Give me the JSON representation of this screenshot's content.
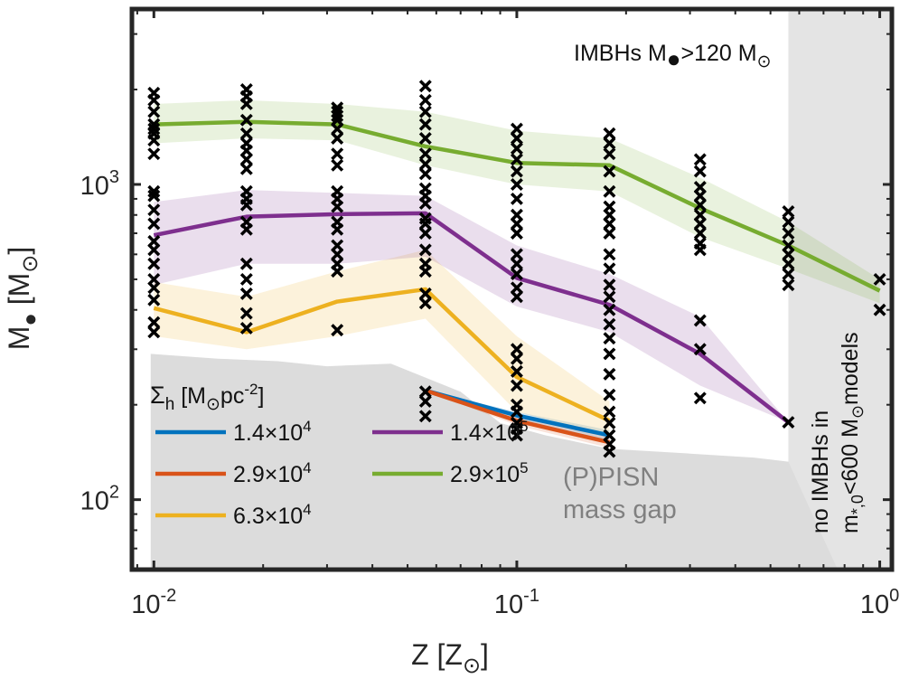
{
  "chart_data": {
    "type": "line",
    "x_scale": "log",
    "y_scale": "log",
    "xlim": [
      0.0087,
      1.08
    ],
    "ylim": [
      60,
      3600
    ],
    "xlabel": "Z [Z",
    "xlabel_sub": "⊙",
    "xlabel_close": "]",
    "ylabel": "M",
    "ylabel_sub": "●",
    "ylabel_unit": " [M",
    "ylabel_unit_sub": "⊙",
    "ylabel_close": "]",
    "x_ticks": [
      {
        "value": 0.01,
        "base": "10",
        "exp": "-2"
      },
      {
        "value": 0.1,
        "base": "10",
        "exp": "-1"
      },
      {
        "value": 1,
        "base": "10",
        "exp": "0"
      }
    ],
    "y_ticks": [
      {
        "value": 100,
        "base": "10",
        "exp": "2"
      },
      {
        "value": 1000,
        "base": "10",
        "exp": "3"
      }
    ],
    "legend": {
      "title": "Σ",
      "title_sub": "h",
      "title_unit": " [M",
      "title_unit_sub": "⊙",
      "title_unit_rest": "pc",
      "title_unit_sup": "-2",
      "title_close": "]"
    },
    "series": [
      {
        "name": "1.4×10",
        "exp": "4",
        "color": "#0072BD",
        "x": [
          0.056,
          0.1,
          0.18
        ],
        "y": [
          222,
          185,
          160
        ],
        "band_lo": [
          222,
          180,
          153
        ],
        "band_hi": [
          222,
          190,
          166
        ]
      },
      {
        "name": "2.9×10",
        "exp": "4",
        "color": "#D95319",
        "x": [
          0.056,
          0.1,
          0.18
        ],
        "y": [
          222,
          178,
          152
        ],
        "band_lo": [
          222,
          172,
          146
        ],
        "band_hi": [
          222,
          184,
          158
        ]
      },
      {
        "name": "6.3×10",
        "exp": "4",
        "color": "#EDB120",
        "x": [
          0.01,
          0.018,
          0.032,
          0.056,
          0.1,
          0.18
        ],
        "y": [
          405,
          340,
          425,
          465,
          245,
          178
        ],
        "band_lo": [
          330,
          300,
          330,
          375,
          190,
          160
        ],
        "band_hi": [
          490,
          440,
          530,
          620,
          330,
          205
        ]
      },
      {
        "name": "1.4×10",
        "exp": "5",
        "color": "#7E2F8E",
        "x": [
          0.01,
          0.018,
          0.032,
          0.056,
          0.1,
          0.18,
          0.32,
          0.56
        ],
        "y": [
          690,
          790,
          805,
          810,
          505,
          415,
          290,
          176
        ],
        "band_lo": [
          480,
          560,
          560,
          590,
          410,
          340,
          230,
          176
        ],
        "band_hi": [
          880,
          960,
          940,
          920,
          640,
          520,
          380,
          176
        ]
      },
      {
        "name": "2.9×10",
        "exp": "5",
        "color": "#77AC30",
        "x": [
          0.01,
          0.018,
          0.032,
          0.056,
          0.1,
          0.18,
          0.32,
          0.56,
          1.0
        ],
        "y": [
          1550,
          1580,
          1550,
          1320,
          1170,
          1150,
          840,
          640,
          460
        ],
        "band_lo": [
          1350,
          1400,
          1380,
          1150,
          1000,
          950,
          680,
          540,
          420
        ],
        "band_hi": [
          1800,
          1850,
          1800,
          1700,
          1480,
          1400,
          1050,
          760,
          500
        ]
      }
    ],
    "scatter": {
      "marker": "x",
      "color": "#000000",
      "points": [
        [
          0.01,
          1950
        ],
        [
          0.01,
          1850
        ],
        [
          0.01,
          1700
        ],
        [
          0.01,
          1550
        ],
        [
          0.01,
          1500
        ],
        [
          0.01,
          1450
        ],
        [
          0.01,
          1380
        ],
        [
          0.01,
          1250
        ],
        [
          0.01,
          950
        ],
        [
          0.01,
          920
        ],
        [
          0.01,
          830
        ],
        [
          0.01,
          750
        ],
        [
          0.01,
          660
        ],
        [
          0.01,
          620
        ],
        [
          0.01,
          560
        ],
        [
          0.01,
          500
        ],
        [
          0.01,
          470
        ],
        [
          0.01,
          430
        ],
        [
          0.01,
          365
        ],
        [
          0.01,
          340
        ],
        [
          0.018,
          2000
        ],
        [
          0.018,
          1900
        ],
        [
          0.018,
          1800
        ],
        [
          0.018,
          1600
        ],
        [
          0.018,
          1450
        ],
        [
          0.018,
          1350
        ],
        [
          0.018,
          1280
        ],
        [
          0.018,
          1200
        ],
        [
          0.018,
          1120
        ],
        [
          0.018,
          950
        ],
        [
          0.018,
          900
        ],
        [
          0.018,
          860
        ],
        [
          0.018,
          760
        ],
        [
          0.018,
          720
        ],
        [
          0.018,
          560
        ],
        [
          0.018,
          500
        ],
        [
          0.018,
          450
        ],
        [
          0.018,
          390
        ],
        [
          0.018,
          350
        ],
        [
          0.032,
          1750
        ],
        [
          0.032,
          1700
        ],
        [
          0.032,
          1650
        ],
        [
          0.032,
          1600
        ],
        [
          0.032,
          1500
        ],
        [
          0.032,
          1400
        ],
        [
          0.032,
          1250
        ],
        [
          0.032,
          1150
        ],
        [
          0.032,
          950
        ],
        [
          0.032,
          900
        ],
        [
          0.032,
          850
        ],
        [
          0.032,
          760
        ],
        [
          0.032,
          720
        ],
        [
          0.032,
          640
        ],
        [
          0.032,
          600
        ],
        [
          0.032,
          560
        ],
        [
          0.032,
          530
        ],
        [
          0.032,
          345
        ],
        [
          0.056,
          2050
        ],
        [
          0.056,
          1850
        ],
        [
          0.056,
          1700
        ],
        [
          0.056,
          1550
        ],
        [
          0.056,
          1400
        ],
        [
          0.056,
          1250
        ],
        [
          0.056,
          1160
        ],
        [
          0.056,
          1080
        ],
        [
          0.056,
          970
        ],
        [
          0.056,
          920
        ],
        [
          0.056,
          870
        ],
        [
          0.056,
          780
        ],
        [
          0.056,
          750
        ],
        [
          0.056,
          700
        ],
        [
          0.056,
          620
        ],
        [
          0.056,
          560
        ],
        [
          0.056,
          530
        ],
        [
          0.056,
          450
        ],
        [
          0.056,
          420
        ],
        [
          0.056,
          220
        ],
        [
          0.056,
          205
        ],
        [
          0.056,
          184
        ],
        [
          0.1,
          1500
        ],
        [
          0.1,
          1400
        ],
        [
          0.1,
          1300
        ],
        [
          0.1,
          1200
        ],
        [
          0.1,
          1100
        ],
        [
          0.1,
          1000
        ],
        [
          0.1,
          900
        ],
        [
          0.1,
          800
        ],
        [
          0.1,
          750
        ],
        [
          0.1,
          700
        ],
        [
          0.1,
          600
        ],
        [
          0.1,
          560
        ],
        [
          0.1,
          520
        ],
        [
          0.1,
          470
        ],
        [
          0.1,
          440
        ],
        [
          0.1,
          300
        ],
        [
          0.1,
          280
        ],
        [
          0.1,
          255
        ],
        [
          0.1,
          230
        ],
        [
          0.1,
          200
        ],
        [
          0.1,
          190
        ],
        [
          0.1,
          175
        ],
        [
          0.1,
          168
        ],
        [
          0.1,
          160
        ],
        [
          0.18,
          1450
        ],
        [
          0.18,
          1350
        ],
        [
          0.18,
          1250
        ],
        [
          0.18,
          1100
        ],
        [
          0.18,
          950
        ],
        [
          0.18,
          850
        ],
        [
          0.18,
          800
        ],
        [
          0.18,
          750
        ],
        [
          0.18,
          700
        ],
        [
          0.18,
          600
        ],
        [
          0.18,
          540
        ],
        [
          0.18,
          480
        ],
        [
          0.18,
          440
        ],
        [
          0.18,
          400
        ],
        [
          0.18,
          360
        ],
        [
          0.18,
          325
        ],
        [
          0.18,
          290
        ],
        [
          0.18,
          250
        ],
        [
          0.18,
          215
        ],
        [
          0.18,
          190
        ],
        [
          0.18,
          175
        ],
        [
          0.18,
          160
        ],
        [
          0.18,
          150
        ],
        [
          0.18,
          142
        ],
        [
          0.32,
          1200
        ],
        [
          0.32,
          1100
        ],
        [
          0.32,
          980
        ],
        [
          0.32,
          920
        ],
        [
          0.32,
          860
        ],
        [
          0.32,
          800
        ],
        [
          0.32,
          750
        ],
        [
          0.32,
          700
        ],
        [
          0.32,
          650
        ],
        [
          0.32,
          620
        ],
        [
          0.32,
          370
        ],
        [
          0.32,
          300
        ],
        [
          0.32,
          210
        ],
        [
          0.56,
          820
        ],
        [
          0.56,
          760
        ],
        [
          0.56,
          700
        ],
        [
          0.56,
          640
        ],
        [
          0.56,
          600
        ],
        [
          0.56,
          560
        ],
        [
          0.56,
          520
        ],
        [
          0.56,
          480
        ],
        [
          0.56,
          176
        ],
        [
          1.0,
          500
        ],
        [
          1.0,
          400
        ]
      ]
    },
    "pisn_gap_boundary": {
      "x": [
        0.0098,
        0.015,
        0.022,
        0.03,
        0.045,
        0.07,
        0.09,
        0.12,
        0.18,
        0.3,
        0.45,
        0.56
      ],
      "y": [
        290,
        280,
        275,
        265,
        270,
        220,
        175,
        160,
        145,
        140,
        136,
        132
      ]
    },
    "no_imbh_region_x_min": 0.56,
    "annotations": {
      "imbh": {
        "text": "IMBHs M",
        "sub": "●",
        "text2": ">120 M",
        "sub2": "⊙"
      },
      "gap": {
        "line1": "(P)PISN",
        "line2": "mass gap"
      },
      "no_imbh": {
        "line1": "no IMBHs in",
        "line2_a": "m",
        "line2_sub": "*,0",
        "line2_b": "<600 M",
        "line2_sub2": "⊙",
        "line2_c": "models"
      }
    }
  }
}
